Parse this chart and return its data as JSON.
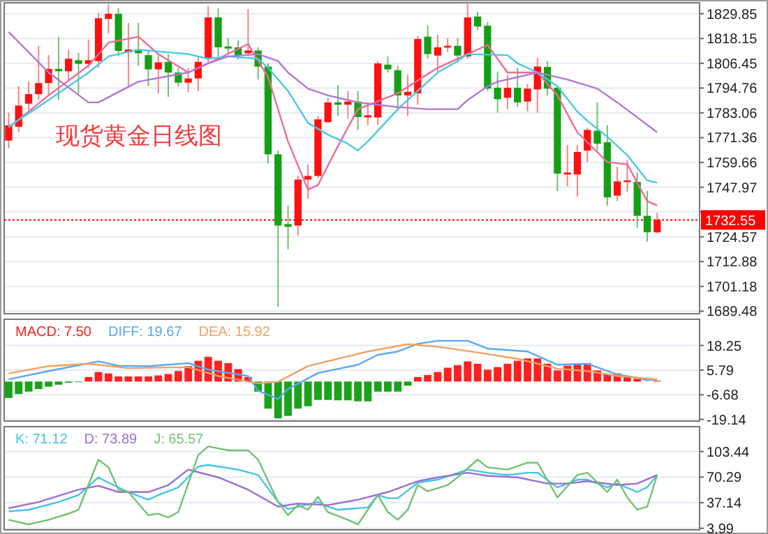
{
  "chart_data": [
    {
      "type": "candlestick",
      "title": "现货黄金日线图",
      "categories": [
        null,
        null,
        null,
        null,
        null,
        null,
        null,
        null,
        null,
        null,
        null,
        null,
        null,
        null,
        null,
        null,
        null,
        null,
        null,
        null,
        null,
        null,
        null,
        null,
        null,
        null,
        null,
        null,
        null,
        null,
        null,
        null,
        null,
        null,
        null,
        null,
        null,
        null,
        null,
        null,
        null,
        null,
        null,
        null,
        null,
        null,
        null,
        null,
        null,
        null,
        null,
        null,
        null,
        null,
        null,
        null,
        null,
        null,
        null,
        null,
        null,
        null,
        null,
        null,
        null,
        null
      ],
      "ylim": [
        1688.3,
        1835.0
      ],
      "yticks": [
        1829.85,
        1818.15,
        1806.45,
        1794.76,
        1783.06,
        1771.36,
        1759.66,
        1747.97,
        {
          "value": 1736.37,
          "label": null
        },
        1724.57,
        1712.88,
        1701.18,
        1689.48
      ],
      "grid": "y",
      "ref_lines": [
        {
          "axis": "y",
          "value": 1732.55,
          "label": "1732.55",
          "color": "#ff0000",
          "line_style": "dotted"
        }
      ],
      "series": [
        {
          "ohlc": [
            [
              1770.0,
              1783.2,
              1766.3,
              1777.2
            ],
            [
              1776.5,
              1795.6,
              1773.9,
              1786.5
            ],
            [
              1787.4,
              1797.8,
              1784.3,
              1791.9
            ],
            [
              1791.9,
              1814.7,
              1789.1,
              1797.1
            ],
            [
              1797.1,
              1810.3,
              1791.3,
              1803.8
            ],
            [
              1803.8,
              1819.0,
              1789.1,
              1802.7
            ],
            [
              1802.7,
              1812.9,
              1798.8,
              1808.6
            ],
            [
              1807.9,
              1811.4,
              1792.3,
              1806.2
            ],
            [
              1806.2,
              1817.7,
              1804.3,
              1807.9
            ],
            [
              1807.5,
              1830.3,
              1804.3,
              1827.7
            ],
            [
              1827.4,
              1834.2,
              1820.5,
              1829.8
            ],
            [
              1829.8,
              1832.4,
              1809.7,
              1812.3
            ],
            [
              1811.6,
              1825.5,
              1795.6,
              1812.9
            ],
            [
              1812.9,
              1825.5,
              1805.3,
              1811.2
            ],
            [
              1810.3,
              1812.9,
              1795.6,
              1803.6
            ],
            [
              1803.6,
              1810.3,
              1792.3,
              1806.9
            ],
            [
              1807.1,
              1810.8,
              1790.6,
              1802.1
            ],
            [
              1802.1,
              1804.3,
              1795.6,
              1797.3
            ],
            [
              1797.3,
              1804.3,
              1792.8,
              1799.3
            ],
            [
              1799.3,
              1809.7,
              1793.4,
              1807.1
            ],
            [
              1808.6,
              1833.5,
              1806.4,
              1828.1
            ],
            [
              1828.1,
              1832.4,
              1809.7,
              1814.0
            ],
            [
              1814.4,
              1818.3,
              1810.8,
              1813.4
            ],
            [
              1814.0,
              1817.3,
              1808.2,
              1810.3
            ],
            [
              1811.2,
              1832.0,
              1809.7,
              1812.5
            ],
            [
              1812.5,
              1814.0,
              1798.8,
              1804.9
            ],
            [
              1804.9,
              1806.4,
              1759.2,
              1763.5
            ],
            [
              1763.5,
              1765.3,
              1691.6,
              1729.9
            ],
            [
              1730.6,
              1739.3,
              1718.7,
              1729.3
            ],
            [
              1729.9,
              1753.3,
              1725.2,
              1751.6
            ],
            [
              1751.6,
              1758.8,
              1742.5,
              1753.3
            ],
            [
              1753.3,
              1781.5,
              1752.3,
              1780.0
            ],
            [
              1778.7,
              1790.2,
              1778.3,
              1788.0
            ],
            [
              1788.0,
              1796.0,
              1781.5,
              1786.9
            ],
            [
              1786.9,
              1793.4,
              1780.4,
              1788.4
            ],
            [
              1788.4,
              1793.4,
              1775.0,
              1781.1
            ],
            [
              1780.9,
              1788.0,
              1777.2,
              1781.9
            ],
            [
              1780.9,
              1807.5,
              1777.2,
              1806.4
            ],
            [
              1805.8,
              1809.7,
              1802.1,
              1803.6
            ],
            [
              1803.2,
              1805.3,
              1784.3,
              1791.3
            ],
            [
              1791.3,
              1801.0,
              1781.5,
              1793.0
            ],
            [
              1792.3,
              1819.4,
              1786.9,
              1817.9
            ],
            [
              1819.0,
              1824.4,
              1808.6,
              1810.8
            ],
            [
              1810.1,
              1819.9,
              1802.5,
              1814.0
            ],
            [
              1814.2,
              1818.3,
              1811.8,
              1814.7
            ],
            [
              1814.7,
              1818.3,
              1806.9,
              1810.1
            ],
            [
              1809.7,
              1834.6,
              1808.6,
              1828.1
            ],
            [
              1828.5,
              1830.7,
              1822.0,
              1823.8
            ],
            [
              1824.2,
              1825.9,
              1793.4,
              1794.5
            ],
            [
              1794.9,
              1802.5,
              1783.2,
              1789.5
            ],
            [
              1790.2,
              1801.0,
              1784.8,
              1794.9
            ],
            [
              1794.9,
              1804.3,
              1785.8,
              1788.0
            ],
            [
              1788.4,
              1796.7,
              1783.7,
              1794.5
            ],
            [
              1794.1,
              1809.0,
              1783.2,
              1804.9
            ],
            [
              1804.7,
              1807.5,
              1791.3,
              1794.5
            ],
            [
              1794.9,
              1795.6,
              1746.2,
              1754.4
            ],
            [
              1754.0,
              1767.9,
              1748.4,
              1754.9
            ],
            [
              1754.0,
              1767.9,
              1743.6,
              1764.6
            ],
            [
              1765.3,
              1776.1,
              1759.8,
              1775.0
            ],
            [
              1774.6,
              1788.0,
              1765.3,
              1768.5
            ],
            [
              1769.2,
              1777.2,
              1739.3,
              1743.2
            ],
            [
              1744.0,
              1757.7,
              1741.4,
              1750.7
            ],
            [
              1750.5,
              1760.9,
              1745.8,
              1751.2
            ],
            [
              1750.5,
              1754.9,
              1728.9,
              1734.5
            ],
            [
              1734.5,
              1746.2,
              1722.3,
              1726.7
            ],
            [
              1726.7,
              1736.0,
              1726.2,
              1732.55
            ]
          ]
        },
        {
          "type": "line",
          "color": "#f06a98",
          "values": [
            1776.1,
            null,
            null,
            null,
            1791.3,
            null,
            null,
            null,
            1805.3,
            null,
            1816.2,
            null,
            null,
            1819.0,
            null,
            1810.8,
            null,
            null,
            1802.1,
            null,
            1806.4,
            null,
            null,
            null,
            1815.5,
            null,
            1799.9,
            null,
            1769.6,
            null,
            1746.8,
            1749.0,
            null,
            1767.4,
            null,
            1784.8,
            null,
            null,
            null,
            1792.3,
            null,
            null,
            null,
            1804.3,
            null,
            null,
            null,
            null,
            1815.1,
            null,
            1802.1,
            null,
            null,
            1802.1,
            null,
            1791.3,
            null,
            1773.9,
            null,
            null,
            1759.8,
            null,
            1758.8,
            null,
            1741.4,
            1739.3
          ]
        },
        {
          "type": "line",
          "color": "#4cc8e0",
          "values": [
            1776.5,
            null,
            null,
            null,
            1789.1,
            null,
            null,
            null,
            1802.1,
            null,
            1809.7,
            null,
            null,
            1812.9,
            null,
            null,
            null,
            null,
            1810.8,
            null,
            1808.6,
            null,
            1809.7,
            null,
            null,
            1808.6,
            1804.3,
            null,
            1793.4,
            null,
            1778.3,
            null,
            1772.8,
            null,
            1768.5,
            1765.3,
            1769.6,
            null,
            null,
            1784.8,
            null,
            1793.4,
            null,
            1802.1,
            null,
            1807.5,
            1810.8,
            null,
            null,
            null,
            1810.3,
            1806.4,
            null,
            1802.1,
            null,
            1795.6,
            null,
            1783.7,
            1779.3,
            null,
            1771.8,
            null,
            1763.1,
            null,
            1751.2,
            1750.1
          ]
        },
        {
          "type": "line",
          "color": "#b077d4",
          "values": [
            1821.2,
            null,
            null,
            null,
            1802.1,
            null,
            null,
            null,
            1788.0,
            1788.0,
            null,
            null,
            null,
            1797.8,
            null,
            null,
            null,
            null,
            1802.1,
            null,
            1806.4,
            null,
            1809.7,
            null,
            null,
            1810.8,
            null,
            1807.5,
            1802.1,
            null,
            1794.5,
            null,
            1791.3,
            null,
            1789.1,
            1788.0,
            null,
            1786.9,
            null,
            1785.8,
            null,
            null,
            1784.8,
            null,
            null,
            1784.8,
            1789.1,
            null,
            1795.6,
            1797.8,
            null,
            1799.9,
            null,
            1802.1,
            1801.0,
            null,
            1798.8,
            null,
            null,
            1794.5,
            null,
            1788.0,
            null,
            null,
            null,
            1773.9
          ]
        }
      ]
    },
    {
      "type": "bar",
      "categories": [
        null,
        null,
        null,
        null,
        null,
        null,
        null,
        null,
        null,
        null,
        null,
        null,
        null,
        null,
        null,
        null,
        null,
        null,
        null,
        null,
        null,
        null,
        null,
        null,
        null,
        null,
        null,
        null,
        null,
        null,
        null,
        null,
        null,
        null,
        null,
        null,
        null,
        null,
        null,
        null,
        null,
        null,
        null,
        null,
        null,
        null,
        null,
        null,
        null,
        null,
        null,
        null,
        null,
        null,
        null,
        null,
        null,
        null,
        null,
        null,
        null,
        null,
        null,
        null,
        null,
        null
      ],
      "ylim": [
        -20,
        31.5
      ],
      "yticks": [
        18.25,
        5.79,
        -6.68,
        -19.14
      ],
      "grid": "y",
      "legend": "top left",
      "series": [
        {
          "name": "MACD: 7.50",
          "color": "#ff2020",
          "colors": [
            "#1aa31a",
            "#1aa31a",
            "#1aa31a",
            "#1aa31a",
            "#1aa31a",
            "#1aa31a",
            "#1aa31a",
            "#1aa31a",
            "#ff2020",
            "#ff2020",
            "#ff2020",
            "#ff2020",
            "#ff2020",
            "#ff2020",
            "#ff2020",
            "#ff2020",
            "#ff2020",
            "#ff2020",
            "#ff2020",
            "#ff2020",
            "#ff2020",
            "#ff2020",
            "#ff2020",
            "#ff2020",
            "#ff2020",
            "#1aa31a",
            "#1aa31a",
            "#1aa31a",
            "#1aa31a",
            "#1aa31a",
            "#1aa31a",
            "#1aa31a",
            "#1aa31a",
            "#1aa31a",
            "#1aa31a",
            "#1aa31a",
            "#1aa31a",
            "#1aa31a",
            "#1aa31a",
            "#1aa31a",
            "#1aa31a",
            "#ff2020",
            "#ff2020",
            "#ff2020",
            "#ff2020",
            "#ff2020",
            "#ff2020",
            "#ff2020",
            "#ff2020",
            "#ff2020",
            "#ff2020",
            "#ff2020",
            "#ff2020",
            "#ff2020",
            "#ff2020",
            "#ff2020",
            "#ff2020",
            "#ff2020",
            "#ff2020",
            "#ff2020",
            "#ff2020",
            "#ff2020",
            "#ff2020",
            "#ff2020",
            null,
            "#ff2020"
          ],
          "values": [
            -8.3,
            -6.3,
            -5.1,
            -3.8,
            -2.6,
            -1.6,
            -0.6,
            -0.3,
            2.3,
            4.8,
            4.1,
            2.6,
            2.6,
            2.6,
            2.6,
            3.1,
            3.8,
            5.3,
            7.8,
            10.5,
            12.5,
            10.5,
            9.3,
            6.3,
            2.3,
            -5.1,
            -13.7,
            -18.6,
            -17.4,
            -13.7,
            -12.5,
            -9.3,
            -9.3,
            -9.5,
            -9.5,
            -10.0,
            -10.0,
            -5.1,
            -5.1,
            -5.1,
            -2.1,
            2.3,
            3.3,
            4.8,
            7.0,
            8.3,
            10.2,
            9.0,
            6.0,
            7.3,
            9.0,
            10.5,
            11.7,
            11.7,
            9.0,
            5.6,
            8.0,
            8.8,
            9.3,
            5.6,
            3.8,
            4.1,
            2.8,
            1.4,
            null,
            0.4
          ]
        },
        {
          "type": "line",
          "name": "DIFF: 19.67",
          "color": "#5aa8f0",
          "values": [
            1.1,
            null,
            null,
            null,
            5.3,
            null,
            null,
            null,
            null,
            10.2,
            null,
            8.0,
            null,
            null,
            7.8,
            null,
            null,
            null,
            9.3,
            null,
            6.0,
            null,
            null,
            null,
            2.8,
            -4.6,
            null,
            -8.8,
            -3.8,
            null,
            null,
            4.3,
            null,
            null,
            null,
            8.5,
            null,
            13.5,
            null,
            15.2,
            null,
            19.1,
            null,
            20.6,
            null,
            null,
            20.6,
            null,
            16.7,
            null,
            null,
            null,
            15.2,
            null,
            null,
            8.5,
            null,
            null,
            9.0,
            null,
            null,
            3.6,
            null,
            1.9,
            0.6,
            1.1
          ]
        },
        {
          "type": "line",
          "name": "DEA: 15.92",
          "color": "#f3a060",
          "values": [
            4.1,
            null,
            null,
            null,
            7.8,
            null,
            null,
            null,
            9.0,
            null,
            null,
            null,
            6.8,
            null,
            null,
            null,
            null,
            null,
            7.3,
            null,
            null,
            2.8,
            null,
            null,
            null,
            -0.9,
            null,
            -0.1,
            null,
            null,
            7.8,
            null,
            null,
            null,
            null,
            null,
            15.2,
            null,
            null,
            null,
            18.9,
            null,
            null,
            17.6,
            null,
            null,
            null,
            14.7,
            null,
            null,
            null,
            11.5,
            null,
            null,
            null,
            6.5,
            null,
            null,
            5.3,
            null,
            null,
            2.8,
            null,
            null,
            null,
            1.1
          ]
        }
      ]
    },
    {
      "type": "line",
      "categories": [
        null,
        null,
        null,
        null,
        null,
        null,
        null,
        null,
        null,
        null,
        null,
        null,
        null,
        null,
        null,
        null,
        null,
        null,
        null,
        null,
        null,
        null,
        null,
        null,
        null,
        null,
        null,
        null,
        null,
        null,
        null,
        null,
        null,
        null,
        null,
        null,
        null,
        null,
        null,
        null,
        null,
        null,
        null,
        null,
        null,
        null,
        null,
        null,
        null,
        null,
        null,
        null,
        null,
        null,
        null,
        null,
        null,
        null,
        null,
        null,
        null,
        null,
        null,
        null,
        null,
        null
      ],
      "ylim": [
        2.0,
        135.7
      ],
      "yticks": [
        103.44,
        70.29,
        37.14,
        3.99
      ],
      "grid": "y",
      "legend": "top left",
      "series": [
        {
          "name": "K: 71.12",
          "color": "#45c3e3",
          "values": [
            26,
            null,
            28,
            null,
            null,
            38,
            null,
            47,
            null,
            70,
            63,
            null,
            51,
            null,
            41,
            47,
            null,
            57,
            null,
            84,
            86,
            null,
            null,
            80,
            null,
            73,
            null,
            38,
            29,
            32,
            null,
            38,
            32,
            28,
            null,
            null,
            31,
            47,
            43,
            43,
            null,
            63,
            null,
            67,
            null,
            null,
            80,
            null,
            76,
            null,
            73,
            null,
            76,
            76,
            null,
            57,
            null,
            67,
            67,
            null,
            57,
            62,
            null,
            51,
            57,
            73
          ]
        },
        {
          "name": "D: 73.89",
          "color": "#9b6fd0",
          "values": [
            30,
            null,
            null,
            38,
            null,
            null,
            null,
            54,
            null,
            59,
            null,
            51,
            null,
            null,
            51,
            null,
            60,
            null,
            80,
            null,
            null,
            70,
            null,
            null,
            54,
            null,
            null,
            32,
            null,
            36,
            null,
            null,
            34,
            null,
            null,
            41,
            null,
            null,
            51,
            null,
            null,
            65,
            null,
            70,
            null,
            null,
            76,
            null,
            72,
            null,
            null,
            70,
            null,
            null,
            62,
            null,
            62,
            null,
            65,
            null,
            null,
            60,
            null,
            62,
            null,
            73
          ]
        },
        {
          "name": "J: 65.57",
          "color": "#72c272",
          "values": [
            15,
            null,
            9,
            null,
            15,
            null,
            23,
            28,
            null,
            93,
            83,
            54,
            51,
            null,
            21,
            23,
            18,
            25,
            null,
            99,
            110,
            null,
            105,
            null,
            105,
            93,
            null,
            38,
            21,
            34,
            28,
            45,
            25,
            null,
            15,
            9,
            null,
            47,
            25,
            15,
            28,
            60,
            52,
            null,
            60,
            70,
            null,
            93,
            83,
            null,
            80,
            null,
            89,
            89,
            null,
            44,
            null,
            73,
            76,
            null,
            51,
            67,
            44,
            28,
            32,
            73
          ]
        }
      ]
    }
  ]
}
